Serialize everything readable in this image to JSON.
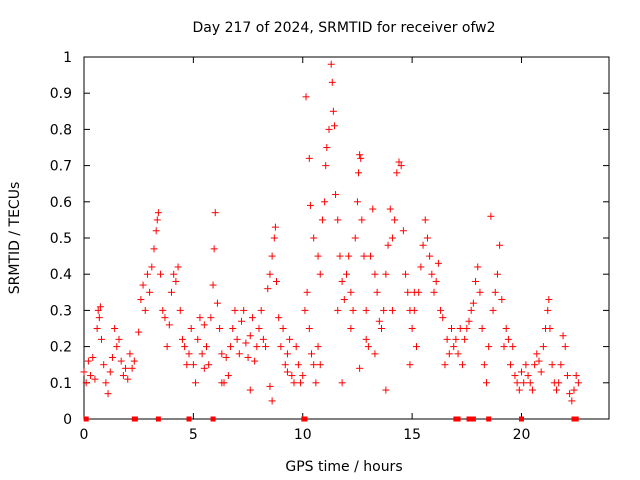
{
  "chart_data": {
    "type": "scatter",
    "title": "Day 217 of 2024, SRMTID for receiver ofw2",
    "xlabel": "GPS time / hours",
    "ylabel": "SRMTID / TECUs",
    "xlim": [
      0,
      24
    ],
    "ylim": [
      0,
      1
    ],
    "xticks": [
      0,
      5,
      10,
      15,
      20
    ],
    "xtick_labels": [
      "0",
      "5",
      "10",
      "15",
      "20"
    ],
    "yticks": [
      0,
      0.1,
      0.2,
      0.3,
      0.4,
      0.5,
      0.6,
      0.7,
      0.8,
      0.9,
      1
    ],
    "ytick_labels": [
      "0",
      "0.1",
      "0.2",
      "0.3",
      "0.4",
      "0.5",
      "0.6",
      "0.7",
      "0.8",
      "0.9",
      "1"
    ],
    "grid": false,
    "marker": "+",
    "color": "#ff0000",
    "series": [
      {
        "name": "SRMTID",
        "points": [
          [
            0.0,
            0.13
          ],
          [
            0.1,
            0.1
          ],
          [
            0.2,
            0.16
          ],
          [
            0.3,
            0.12
          ],
          [
            0.4,
            0.17
          ],
          [
            0.5,
            0.11
          ],
          [
            0.6,
            0.25
          ],
          [
            0.65,
            0.3
          ],
          [
            0.7,
            0.28
          ],
          [
            0.75,
            0.31
          ],
          [
            0.8,
            0.22
          ],
          [
            0.9,
            0.15
          ],
          [
            1.0,
            0.1
          ],
          [
            1.1,
            0.07
          ],
          [
            1.2,
            0.13
          ],
          [
            1.3,
            0.17
          ],
          [
            1.4,
            0.25
          ],
          [
            1.5,
            0.2
          ],
          [
            1.6,
            0.22
          ],
          [
            1.7,
            0.16
          ],
          [
            1.8,
            0.12
          ],
          [
            1.9,
            0.14
          ],
          [
            2.0,
            0.11
          ],
          [
            2.1,
            0.18
          ],
          [
            2.2,
            0.14
          ],
          [
            2.3,
            0.16
          ],
          [
            2.5,
            0.24
          ],
          [
            2.6,
            0.33
          ],
          [
            2.7,
            0.37
          ],
          [
            2.8,
            0.3
          ],
          [
            2.9,
            0.4
          ],
          [
            3.0,
            0.35
          ],
          [
            3.1,
            0.42
          ],
          [
            3.2,
            0.47
          ],
          [
            3.3,
            0.52
          ],
          [
            3.35,
            0.55
          ],
          [
            3.4,
            0.57
          ],
          [
            3.5,
            0.4
          ],
          [
            3.6,
            0.3
          ],
          [
            3.7,
            0.28
          ],
          [
            3.8,
            0.2
          ],
          [
            3.9,
            0.26
          ],
          [
            4.0,
            0.35
          ],
          [
            4.1,
            0.4
          ],
          [
            4.2,
            0.38
          ],
          [
            4.3,
            0.42
          ],
          [
            4.4,
            0.3
          ],
          [
            4.5,
            0.22
          ],
          [
            4.6,
            0.2
          ],
          [
            4.7,
            0.15
          ],
          [
            4.8,
            0.18
          ],
          [
            4.9,
            0.25
          ],
          [
            5.0,
            0.15
          ],
          [
            5.1,
            0.1
          ],
          [
            5.2,
            0.22
          ],
          [
            5.3,
            0.28
          ],
          [
            5.4,
            0.18
          ],
          [
            5.5,
            0.26
          ],
          [
            5.6,
            0.2
          ],
          [
            5.7,
            0.15
          ],
          [
            5.8,
            0.28
          ],
          [
            5.9,
            0.37
          ],
          [
            5.95,
            0.47
          ],
          [
            6.0,
            0.57
          ],
          [
            6.1,
            0.32
          ],
          [
            6.2,
            0.25
          ],
          [
            6.3,
            0.18
          ],
          [
            6.4,
            0.1
          ],
          [
            6.5,
            0.17
          ],
          [
            6.6,
            0.12
          ],
          [
            6.7,
            0.2
          ],
          [
            6.8,
            0.25
          ],
          [
            6.9,
            0.3
          ],
          [
            7.0,
            0.22
          ],
          [
            7.1,
            0.18
          ],
          [
            7.2,
            0.27
          ],
          [
            7.3,
            0.3
          ],
          [
            7.4,
            0.21
          ],
          [
            7.5,
            0.17
          ],
          [
            7.6,
            0.23
          ],
          [
            7.7,
            0.28
          ],
          [
            7.8,
            0.16
          ],
          [
            7.9,
            0.2
          ],
          [
            8.0,
            0.25
          ],
          [
            8.1,
            0.3
          ],
          [
            8.2,
            0.22
          ],
          [
            8.3,
            0.2
          ],
          [
            8.4,
            0.36
          ],
          [
            8.5,
            0.4
          ],
          [
            8.6,
            0.45
          ],
          [
            8.7,
            0.5
          ],
          [
            8.75,
            0.53
          ],
          [
            8.8,
            0.38
          ],
          [
            8.9,
            0.28
          ],
          [
            9.0,
            0.2
          ],
          [
            9.1,
            0.25
          ],
          [
            9.2,
            0.15
          ],
          [
            9.3,
            0.18
          ],
          [
            9.4,
            0.22
          ],
          [
            9.5,
            0.12
          ],
          [
            9.6,
            0.1
          ],
          [
            9.7,
            0.2
          ],
          [
            9.8,
            0.15
          ],
          [
            9.9,
            0.1
          ],
          [
            10.0,
            0.12
          ],
          [
            10.1,
            0.3
          ],
          [
            10.2,
            0.35
          ],
          [
            10.3,
            0.25
          ],
          [
            10.4,
            0.18
          ],
          [
            10.5,
            0.15
          ],
          [
            10.6,
            0.1
          ],
          [
            10.7,
            0.2
          ],
          [
            10.8,
            0.15
          ],
          [
            8.6,
            0.05
          ],
          [
            8.5,
            0.09
          ],
          [
            6.3,
            0.1
          ],
          [
            7.6,
            0.08
          ],
          [
            9.3,
            0.13
          ],
          [
            5.5,
            0.14
          ],
          [
            10.15,
            0.89
          ],
          [
            10.3,
            0.72
          ],
          [
            10.35,
            0.59
          ],
          [
            10.5,
            0.5
          ],
          [
            10.7,
            0.45
          ],
          [
            10.8,
            0.4
          ],
          [
            10.9,
            0.55
          ],
          [
            11.0,
            0.6
          ],
          [
            11.05,
            0.7
          ],
          [
            11.1,
            0.75
          ],
          [
            11.2,
            0.8
          ],
          [
            11.3,
            0.98
          ],
          [
            11.35,
            0.93
          ],
          [
            11.4,
            0.85
          ],
          [
            11.45,
            0.81
          ],
          [
            11.5,
            0.62
          ],
          [
            11.6,
            0.55
          ],
          [
            11.7,
            0.45
          ],
          [
            11.8,
            0.38
          ],
          [
            11.9,
            0.33
          ],
          [
            12.0,
            0.4
          ],
          [
            12.1,
            0.45
          ],
          [
            12.2,
            0.35
          ],
          [
            12.3,
            0.3
          ],
          [
            12.4,
            0.5
          ],
          [
            12.5,
            0.6
          ],
          [
            12.55,
            0.68
          ],
          [
            12.6,
            0.73
          ],
          [
            12.65,
            0.72
          ],
          [
            12.7,
            0.55
          ],
          [
            12.8,
            0.45
          ],
          [
            12.9,
            0.3
          ],
          [
            13.0,
            0.2
          ],
          [
            13.1,
            0.45
          ],
          [
            13.2,
            0.58
          ],
          [
            13.3,
            0.4
          ],
          [
            13.4,
            0.35
          ],
          [
            13.5,
            0.27
          ],
          [
            13.6,
            0.25
          ],
          [
            13.7,
            0.3
          ],
          [
            13.8,
            0.4
          ],
          [
            13.9,
            0.48
          ],
          [
            14.0,
            0.58
          ],
          [
            14.1,
            0.5
          ],
          [
            14.2,
            0.55
          ],
          [
            14.3,
            0.68
          ],
          [
            14.4,
            0.71
          ],
          [
            14.5,
            0.7
          ],
          [
            14.6,
            0.52
          ],
          [
            14.7,
            0.4
          ],
          [
            14.8,
            0.35
          ],
          [
            14.9,
            0.3
          ],
          [
            15.0,
            0.25
          ],
          [
            15.1,
            0.3
          ],
          [
            15.2,
            0.2
          ],
          [
            15.3,
            0.35
          ],
          [
            15.4,
            0.42
          ],
          [
            15.5,
            0.48
          ],
          [
            15.6,
            0.55
          ],
          [
            15.7,
            0.5
          ],
          [
            15.8,
            0.45
          ],
          [
            15.9,
            0.4
          ],
          [
            16.0,
            0.35
          ],
          [
            16.1,
            0.38
          ],
          [
            16.2,
            0.43
          ],
          [
            16.3,
            0.3
          ],
          [
            16.4,
            0.28
          ],
          [
            16.5,
            0.15
          ],
          [
            16.6,
            0.22
          ],
          [
            16.7,
            0.18
          ],
          [
            16.8,
            0.25
          ],
          [
            12.6,
            0.14
          ],
          [
            13.8,
            0.08
          ],
          [
            14.9,
            0.15
          ],
          [
            11.8,
            0.1
          ],
          [
            12.2,
            0.25
          ],
          [
            13.3,
            0.18
          ],
          [
            15.1,
            0.35
          ],
          [
            14.1,
            0.3
          ],
          [
            11.6,
            0.3
          ],
          [
            12.9,
            0.22
          ],
          [
            16.9,
            0.2
          ],
          [
            17.0,
            0.22
          ],
          [
            17.1,
            0.18
          ],
          [
            17.2,
            0.25
          ],
          [
            17.3,
            0.15
          ],
          [
            17.4,
            0.22
          ],
          [
            17.5,
            0.25
          ],
          [
            17.6,
            0.27
          ],
          [
            17.7,
            0.3
          ],
          [
            17.8,
            0.32
          ],
          [
            17.9,
            0.38
          ],
          [
            18.0,
            0.42
          ],
          [
            18.1,
            0.35
          ],
          [
            18.2,
            0.25
          ],
          [
            18.3,
            0.15
          ],
          [
            18.4,
            0.1
          ],
          [
            18.5,
            0.2
          ],
          [
            18.6,
            0.56
          ],
          [
            18.7,
            0.3
          ],
          [
            18.8,
            0.35
          ],
          [
            18.9,
            0.4
          ],
          [
            19.0,
            0.48
          ],
          [
            19.1,
            0.33
          ],
          [
            19.2,
            0.2
          ],
          [
            19.3,
            0.25
          ],
          [
            19.4,
            0.22
          ],
          [
            19.5,
            0.15
          ],
          [
            19.6,
            0.2
          ],
          [
            19.7,
            0.12
          ],
          [
            19.8,
            0.1
          ],
          [
            19.9,
            0.08
          ],
          [
            20.0,
            0.13
          ],
          [
            20.1,
            0.1
          ],
          [
            20.2,
            0.15
          ],
          [
            20.3,
            0.12
          ],
          [
            20.4,
            0.1
          ],
          [
            20.5,
            0.08
          ],
          [
            20.6,
            0.15
          ],
          [
            20.7,
            0.18
          ],
          [
            20.8,
            0.16
          ],
          [
            20.9,
            0.13
          ],
          [
            21.0,
            0.2
          ],
          [
            21.1,
            0.25
          ],
          [
            21.2,
            0.3
          ],
          [
            21.25,
            0.33
          ],
          [
            21.3,
            0.25
          ],
          [
            21.4,
            0.15
          ],
          [
            21.5,
            0.1
          ],
          [
            21.6,
            0.08
          ],
          [
            21.7,
            0.1
          ],
          [
            21.8,
            0.15
          ],
          [
            21.9,
            0.23
          ],
          [
            22.0,
            0.2
          ],
          [
            22.1,
            0.12
          ],
          [
            22.2,
            0.07
          ],
          [
            22.3,
            0.05
          ],
          [
            22.4,
            0.08
          ],
          [
            22.5,
            0.12
          ],
          [
            22.6,
            0.1
          ]
        ]
      }
    ],
    "baseline_markers_x": [
      0.1,
      2.3,
      2.35,
      3.4,
      4.8,
      5.9,
      10.05,
      10.1,
      17.0,
      17.1,
      17.6,
      17.8,
      18.5,
      20.0,
      22.4,
      22.5
    ]
  }
}
